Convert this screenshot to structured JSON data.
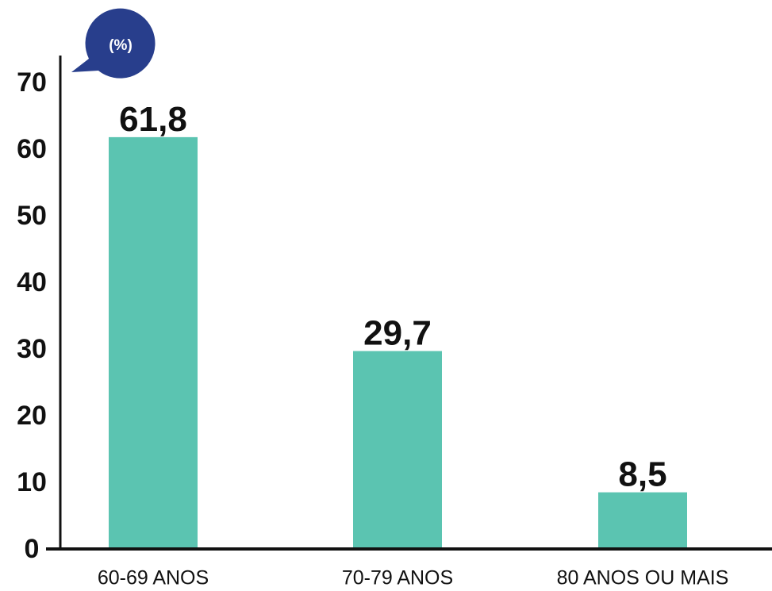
{
  "chart_data": {
    "type": "bar",
    "categories": [
      "60-69 ANOS",
      "70-79 ANOS",
      "80 ANOS OU MAIS"
    ],
    "values": [
      61.8,
      29.7,
      8.5
    ],
    "value_labels": [
      "61,8",
      "29,7",
      "8,5"
    ],
    "title": "",
    "xlabel": "",
    "ylabel": "",
    "unit_badge": "(%)",
    "ylim": [
      0,
      70
    ],
    "yticks": [
      0,
      10,
      20,
      30,
      40,
      50,
      60,
      70
    ],
    "grid": false,
    "legend": "none",
    "colors": {
      "bar": "#5bc4b1",
      "axis": "#111111",
      "badge": "#283e8c",
      "text": "#111111"
    }
  }
}
